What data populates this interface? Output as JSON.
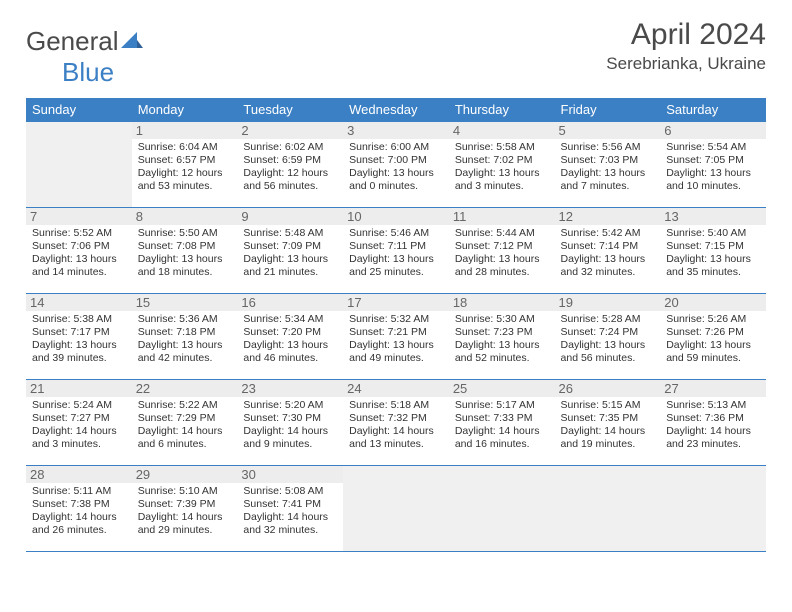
{
  "logo": {
    "text1": "General",
    "text2": "Blue"
  },
  "title": "April 2024",
  "location": "Serebrianka, Ukraine",
  "weekdays": [
    "Sunday",
    "Monday",
    "Tuesday",
    "Wednesday",
    "Thursday",
    "Friday",
    "Saturday"
  ],
  "colors": {
    "header_bg": "#3b7fc4",
    "header_text": "#ffffff",
    "border": "#3b7fc4",
    "daynum_bg": "#ededed",
    "daynum_text": "#666666",
    "body_text": "#333333",
    "empty_bg": "#f0f0f0",
    "title_text": "#4a4a4a"
  },
  "typography": {
    "title_fontsize": 30,
    "location_fontsize": 17,
    "weekday_fontsize": 13,
    "daynum_fontsize": 13,
    "dayinfo_fontsize": 10.5
  },
  "leading_empty": 1,
  "days": [
    {
      "n": 1,
      "sunrise": "6:04 AM",
      "sunset": "6:57 PM",
      "daylight": "12 hours and 53 minutes."
    },
    {
      "n": 2,
      "sunrise": "6:02 AM",
      "sunset": "6:59 PM",
      "daylight": "12 hours and 56 minutes."
    },
    {
      "n": 3,
      "sunrise": "6:00 AM",
      "sunset": "7:00 PM",
      "daylight": "13 hours and 0 minutes."
    },
    {
      "n": 4,
      "sunrise": "5:58 AM",
      "sunset": "7:02 PM",
      "daylight": "13 hours and 3 minutes."
    },
    {
      "n": 5,
      "sunrise": "5:56 AM",
      "sunset": "7:03 PM",
      "daylight": "13 hours and 7 minutes."
    },
    {
      "n": 6,
      "sunrise": "5:54 AM",
      "sunset": "7:05 PM",
      "daylight": "13 hours and 10 minutes."
    },
    {
      "n": 7,
      "sunrise": "5:52 AM",
      "sunset": "7:06 PM",
      "daylight": "13 hours and 14 minutes."
    },
    {
      "n": 8,
      "sunrise": "5:50 AM",
      "sunset": "7:08 PM",
      "daylight": "13 hours and 18 minutes."
    },
    {
      "n": 9,
      "sunrise": "5:48 AM",
      "sunset": "7:09 PM",
      "daylight": "13 hours and 21 minutes."
    },
    {
      "n": 10,
      "sunrise": "5:46 AM",
      "sunset": "7:11 PM",
      "daylight": "13 hours and 25 minutes."
    },
    {
      "n": 11,
      "sunrise": "5:44 AM",
      "sunset": "7:12 PM",
      "daylight": "13 hours and 28 minutes."
    },
    {
      "n": 12,
      "sunrise": "5:42 AM",
      "sunset": "7:14 PM",
      "daylight": "13 hours and 32 minutes."
    },
    {
      "n": 13,
      "sunrise": "5:40 AM",
      "sunset": "7:15 PM",
      "daylight": "13 hours and 35 minutes."
    },
    {
      "n": 14,
      "sunrise": "5:38 AM",
      "sunset": "7:17 PM",
      "daylight": "13 hours and 39 minutes."
    },
    {
      "n": 15,
      "sunrise": "5:36 AM",
      "sunset": "7:18 PM",
      "daylight": "13 hours and 42 minutes."
    },
    {
      "n": 16,
      "sunrise": "5:34 AM",
      "sunset": "7:20 PM",
      "daylight": "13 hours and 46 minutes."
    },
    {
      "n": 17,
      "sunrise": "5:32 AM",
      "sunset": "7:21 PM",
      "daylight": "13 hours and 49 minutes."
    },
    {
      "n": 18,
      "sunrise": "5:30 AM",
      "sunset": "7:23 PM",
      "daylight": "13 hours and 52 minutes."
    },
    {
      "n": 19,
      "sunrise": "5:28 AM",
      "sunset": "7:24 PM",
      "daylight": "13 hours and 56 minutes."
    },
    {
      "n": 20,
      "sunrise": "5:26 AM",
      "sunset": "7:26 PM",
      "daylight": "13 hours and 59 minutes."
    },
    {
      "n": 21,
      "sunrise": "5:24 AM",
      "sunset": "7:27 PM",
      "daylight": "14 hours and 3 minutes."
    },
    {
      "n": 22,
      "sunrise": "5:22 AM",
      "sunset": "7:29 PM",
      "daylight": "14 hours and 6 minutes."
    },
    {
      "n": 23,
      "sunrise": "5:20 AM",
      "sunset": "7:30 PM",
      "daylight": "14 hours and 9 minutes."
    },
    {
      "n": 24,
      "sunrise": "5:18 AM",
      "sunset": "7:32 PM",
      "daylight": "14 hours and 13 minutes."
    },
    {
      "n": 25,
      "sunrise": "5:17 AM",
      "sunset": "7:33 PM",
      "daylight": "14 hours and 16 minutes."
    },
    {
      "n": 26,
      "sunrise": "5:15 AM",
      "sunset": "7:35 PM",
      "daylight": "14 hours and 19 minutes."
    },
    {
      "n": 27,
      "sunrise": "5:13 AM",
      "sunset": "7:36 PM",
      "daylight": "14 hours and 23 minutes."
    },
    {
      "n": 28,
      "sunrise": "5:11 AM",
      "sunset": "7:38 PM",
      "daylight": "14 hours and 26 minutes."
    },
    {
      "n": 29,
      "sunrise": "5:10 AM",
      "sunset": "7:39 PM",
      "daylight": "14 hours and 29 minutes."
    },
    {
      "n": 30,
      "sunrise": "5:08 AM",
      "sunset": "7:41 PM",
      "daylight": "14 hours and 32 minutes."
    }
  ],
  "labels": {
    "sunrise": "Sunrise:",
    "sunset": "Sunset:",
    "daylight": "Daylight:"
  }
}
